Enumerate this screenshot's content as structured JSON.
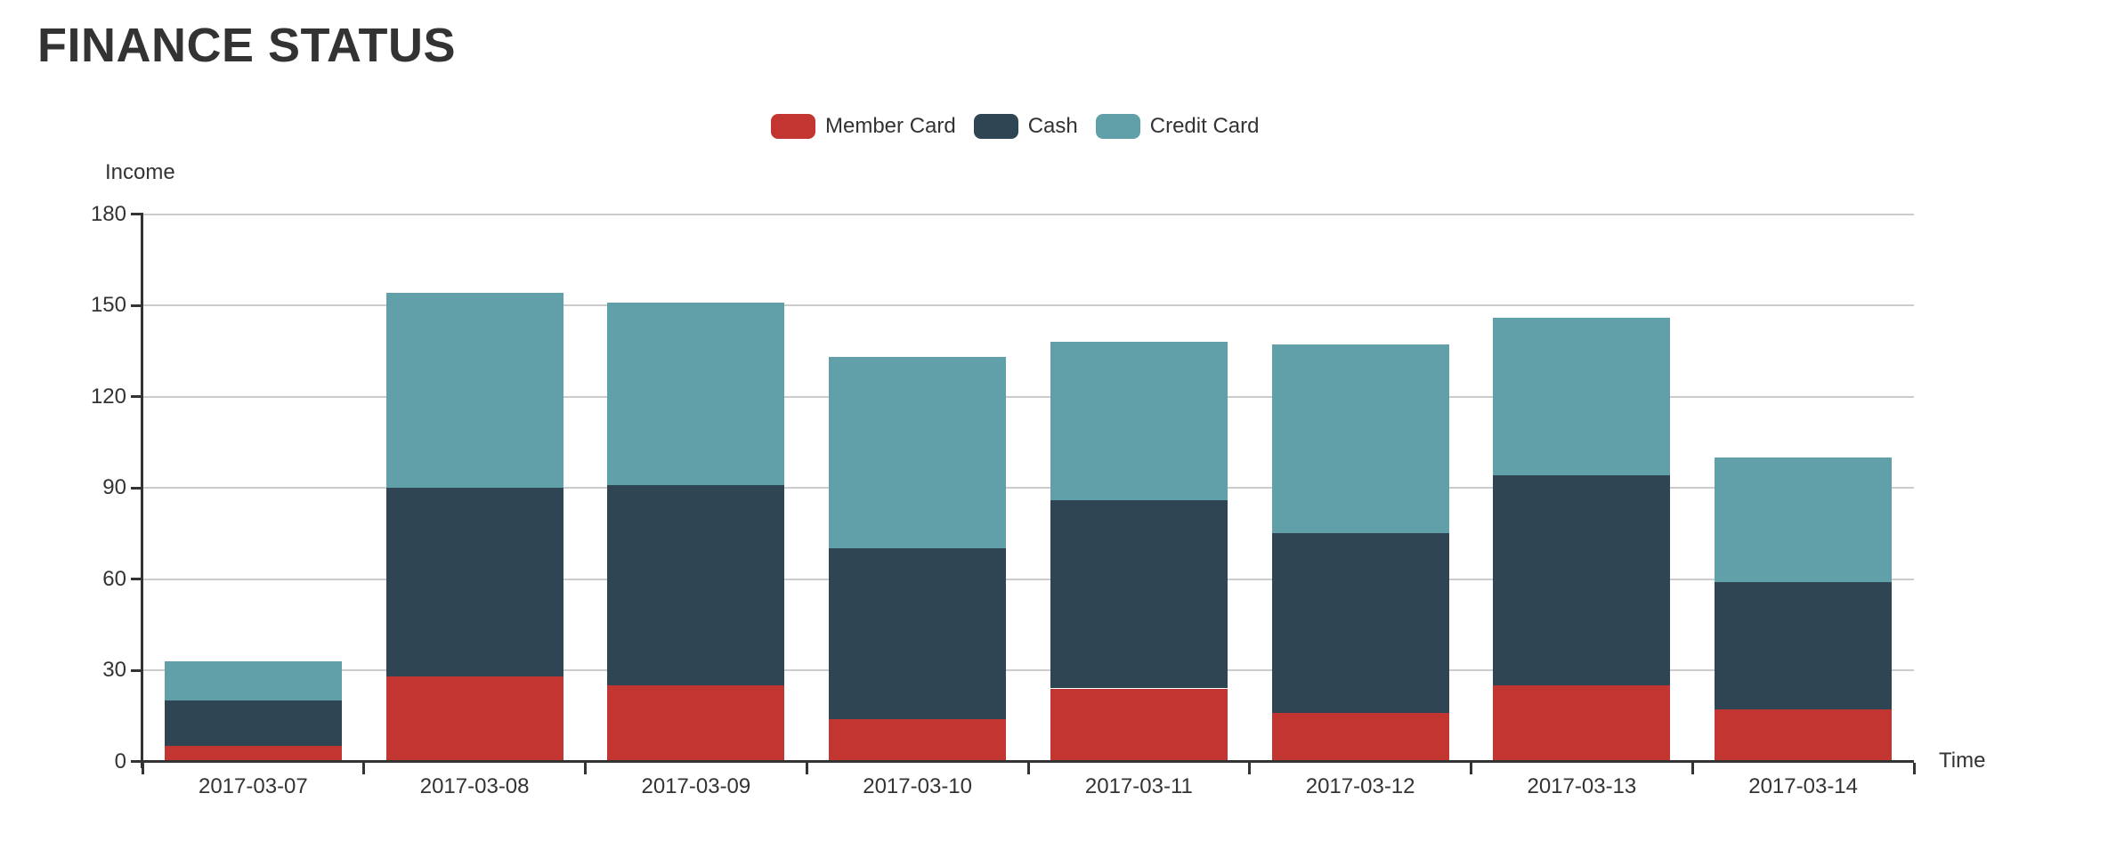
{
  "chart_data": {
    "type": "bar",
    "stacked": true,
    "title": "FINANCE STATUS",
    "categories": [
      "2017-03-07",
      "2017-03-08",
      "2017-03-09",
      "2017-03-10",
      "2017-03-11",
      "2017-03-12",
      "2017-03-13",
      "2017-03-14"
    ],
    "series": [
      {
        "name": "Member Card",
        "color": "#c23531",
        "values": [
          5,
          28,
          25,
          14,
          24,
          16,
          25,
          17
        ]
      },
      {
        "name": "Cash",
        "color": "#2f4554",
        "values": [
          15,
          62,
          66,
          56,
          62,
          59,
          69,
          42
        ]
      },
      {
        "name": "Credit Card",
        "color": "#61a0a8",
        "values": [
          13,
          64,
          60,
          63,
          52,
          62,
          52,
          41
        ]
      }
    ],
    "stack_totals": [
      33,
      154,
      151,
      133,
      138,
      137,
      146,
      100
    ],
    "xlabel": "Time",
    "ylabel": "Income",
    "ylim": [
      0,
      180
    ],
    "ytick_interval": 30,
    "yticks": [
      0,
      30,
      60,
      90,
      120,
      150,
      180
    ],
    "grid": true,
    "legend_position": "top-center",
    "colors": {
      "title_text": "#333333",
      "axis_text": "#333333",
      "axis_line": "#333333",
      "grid_line": "#cccccc",
      "background": "#ffffff"
    }
  }
}
